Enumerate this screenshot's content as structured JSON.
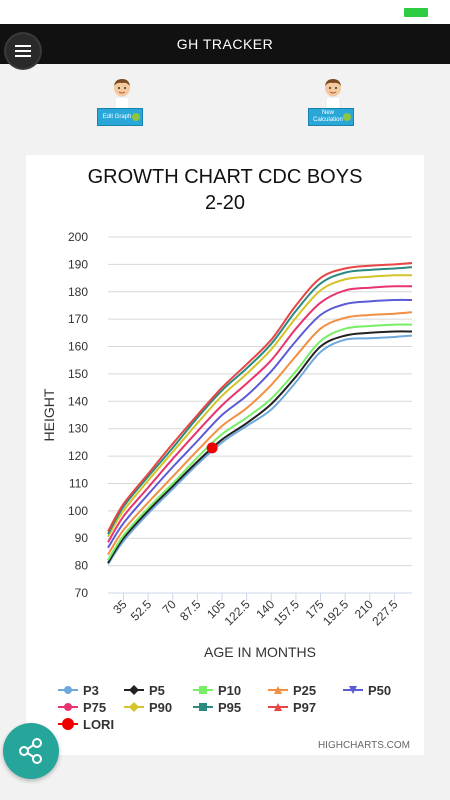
{
  "app": {
    "title": "GH TRACKER"
  },
  "actions": {
    "edit_graph": "Edit Graph",
    "new_calculation": "New Calculation"
  },
  "chart_data": {
    "type": "line",
    "title": "GROWTH CHART CDC BOYS 2-20",
    "title_lines": [
      "GROWTH CHART CDC BOYS",
      "2-20"
    ],
    "xlabel": "AGE IN MONTHS",
    "ylabel": "HEIGHT",
    "xlim": [
      24,
      240
    ],
    "ylim": [
      70,
      200
    ],
    "x_ticks": [
      35,
      52.5,
      70,
      87.5,
      105,
      122.5,
      140,
      157.5,
      175,
      192.5,
      210,
      227.5
    ],
    "y_ticks": [
      70,
      80,
      90,
      100,
      110,
      120,
      130,
      140,
      150,
      160,
      170,
      180,
      190,
      200
    ],
    "x": [
      24,
      35,
      52.5,
      70,
      87.5,
      105,
      122.5,
      140,
      157.5,
      175,
      192.5,
      210,
      227.5,
      240
    ],
    "series": [
      {
        "name": "P3",
        "color": "#6fa8dc",
        "marker": "circle",
        "values": [
          80.5,
          89,
          99,
          108,
          117,
          125,
          131,
          137,
          147,
          158,
          162.5,
          163,
          163.5,
          164
        ]
      },
      {
        "name": "P5",
        "color": "#222222",
        "marker": "diamond",
        "values": [
          81,
          90,
          100,
          109,
          118,
          126,
          132,
          139,
          149,
          160,
          164,
          165,
          165.5,
          165.5
        ]
      },
      {
        "name": "P10",
        "color": "#77ee66",
        "marker": "square",
        "values": [
          82,
          91,
          101,
          110,
          119.5,
          128,
          134,
          141,
          151,
          162,
          166.5,
          167.5,
          168,
          168
        ]
      },
      {
        "name": "P25",
        "color": "#f28f43",
        "marker": "triangle",
        "values": [
          84,
          93,
          103,
          112.5,
          122,
          131,
          137.5,
          146,
          156.5,
          166.5,
          170.5,
          171.5,
          172,
          172.5
        ]
      },
      {
        "name": "P50",
        "color": "#5b5bd6",
        "marker": "triangle-down",
        "values": [
          86.5,
          95.5,
          106,
          116,
          125.5,
          135,
          142,
          151,
          162,
          171.5,
          175.5,
          176.5,
          177,
          177
        ]
      },
      {
        "name": "P75",
        "color": "#e8336e",
        "marker": "circle",
        "values": [
          88.5,
          98,
          108.5,
          119,
          129,
          138.5,
          146.5,
          155,
          166.5,
          176,
          180.5,
          181.5,
          182,
          182
        ]
      },
      {
        "name": "P90",
        "color": "#d4c42a",
        "marker": "diamond",
        "values": [
          90.5,
          100,
          111,
          121.5,
          132,
          142,
          150,
          159,
          170.5,
          180.5,
          184.5,
          185.5,
          186,
          186
        ]
      },
      {
        "name": "P95",
        "color": "#2b8a7f",
        "marker": "square",
        "values": [
          91.5,
          101.5,
          112.5,
          123,
          134,
          144,
          152,
          161,
          173,
          183,
          187,
          188,
          188.5,
          189
        ]
      },
      {
        "name": "P97",
        "color": "#e84545",
        "marker": "triangle",
        "values": [
          92.5,
          102.5,
          113.5,
          124.5,
          135,
          145,
          153.5,
          162.5,
          175,
          185,
          188.5,
          189.5,
          190,
          190.5
        ]
      }
    ],
    "points": [
      {
        "name": "LORI",
        "color": "#ee0000",
        "x": 98,
        "y": 123
      }
    ],
    "legend_position": "bottom",
    "credit": "HIGHCHARTS.COM",
    "grid": true
  }
}
